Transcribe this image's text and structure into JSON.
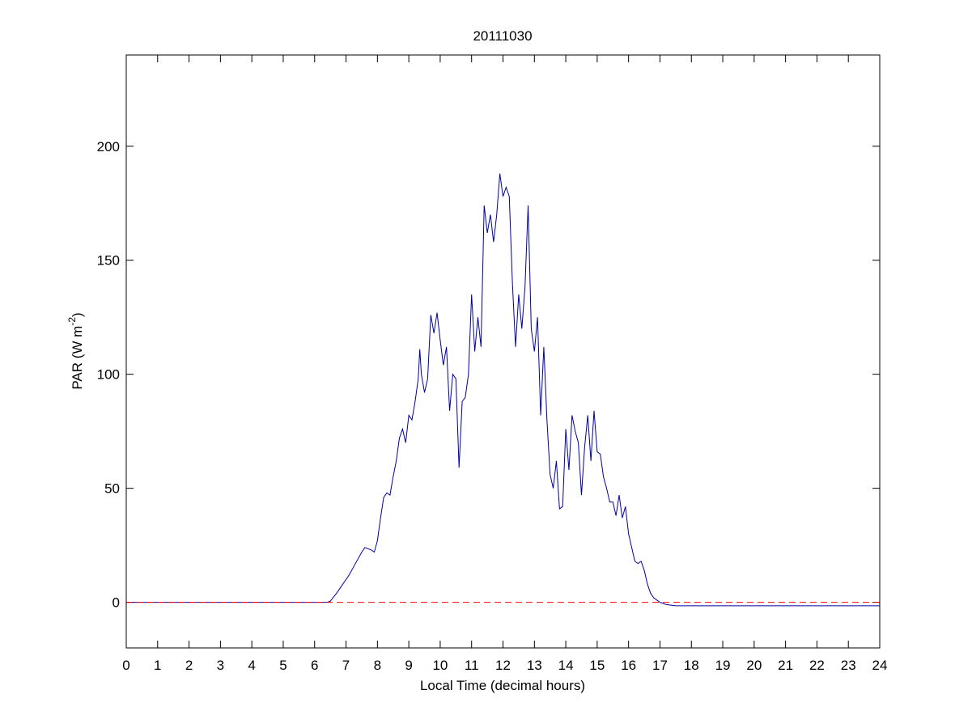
{
  "chart_data": {
    "type": "line",
    "title": "20111030",
    "xlabel": "Local Time (decimal hours)",
    "ylabel": {
      "text": "PAR (W m",
      "sup": "-2",
      "end": ")"
    },
    "x": [
      0,
      6.4,
      6.5,
      6.7,
      6.9,
      7.1,
      7.3,
      7.5,
      7.6,
      7.8,
      7.9,
      8.0,
      8.1,
      8.2,
      8.3,
      8.4,
      8.5,
      8.6,
      8.7,
      8.8,
      8.9,
      9.0,
      9.1,
      9.2,
      9.3,
      9.35,
      9.4,
      9.5,
      9.6,
      9.7,
      9.8,
      9.9,
      10.0,
      10.1,
      10.2,
      10.3,
      10.4,
      10.5,
      10.6,
      10.7,
      10.8,
      10.9,
      11.0,
      11.1,
      11.2,
      11.3,
      11.4,
      11.5,
      11.6,
      11.7,
      11.8,
      11.9,
      12.0,
      12.1,
      12.2,
      12.3,
      12.4,
      12.5,
      12.6,
      12.7,
      12.8,
      12.9,
      13.0,
      13.1,
      13.2,
      13.3,
      13.4,
      13.5,
      13.6,
      13.7,
      13.8,
      13.9,
      14.0,
      14.1,
      14.2,
      14.3,
      14.4,
      14.5,
      14.6,
      14.7,
      14.8,
      14.9,
      15.0,
      15.1,
      15.2,
      15.3,
      15.4,
      15.5,
      15.6,
      15.7,
      15.8,
      15.9,
      16.0,
      16.1,
      16.2,
      16.3,
      16.4,
      16.5,
      16.6,
      16.7,
      16.8,
      17.0,
      17.2,
      17.5,
      20,
      24
    ],
    "series": [
      {
        "name": "PAR",
        "color": "#0000a0",
        "values": [
          0,
          0,
          0.5,
          4,
          8,
          12,
          17,
          22,
          24,
          23,
          22,
          27,
          37,
          46,
          48,
          47,
          55,
          62,
          72,
          76,
          70,
          82,
          80,
          88,
          98,
          111,
          100,
          92,
          98,
          126,
          118,
          127,
          115,
          104,
          112,
          84,
          100,
          98,
          59,
          88,
          90,
          100,
          135,
          110,
          125,
          112,
          174,
          162,
          170,
          158,
          170,
          188,
          178,
          182,
          178,
          140,
          112,
          135,
          120,
          138,
          174,
          120,
          110,
          125,
          82,
          112,
          80,
          56,
          50,
          62,
          41,
          42,
          76,
          58,
          82,
          75,
          70,
          47,
          68,
          82,
          62,
          84,
          66,
          65,
          55,
          50,
          44,
          44,
          38,
          47,
          37,
          42,
          30,
          24,
          18,
          17,
          18,
          14,
          8,
          4,
          2,
          0,
          -1,
          -1.5,
          -1.5,
          -1.5
        ]
      }
    ],
    "reference_line": {
      "value": 0,
      "color": "#ff0000",
      "style": "dashed"
    },
    "xlim": [
      0,
      24
    ],
    "xticks": [
      0,
      1,
      2,
      3,
      4,
      5,
      6,
      7,
      8,
      9,
      10,
      11,
      12,
      13,
      14,
      15,
      16,
      17,
      18,
      19,
      20,
      21,
      22,
      23,
      24
    ],
    "ylim": [
      -20,
      240
    ],
    "yticks": [
      0,
      50,
      100,
      150,
      200
    ],
    "grid": false
  }
}
